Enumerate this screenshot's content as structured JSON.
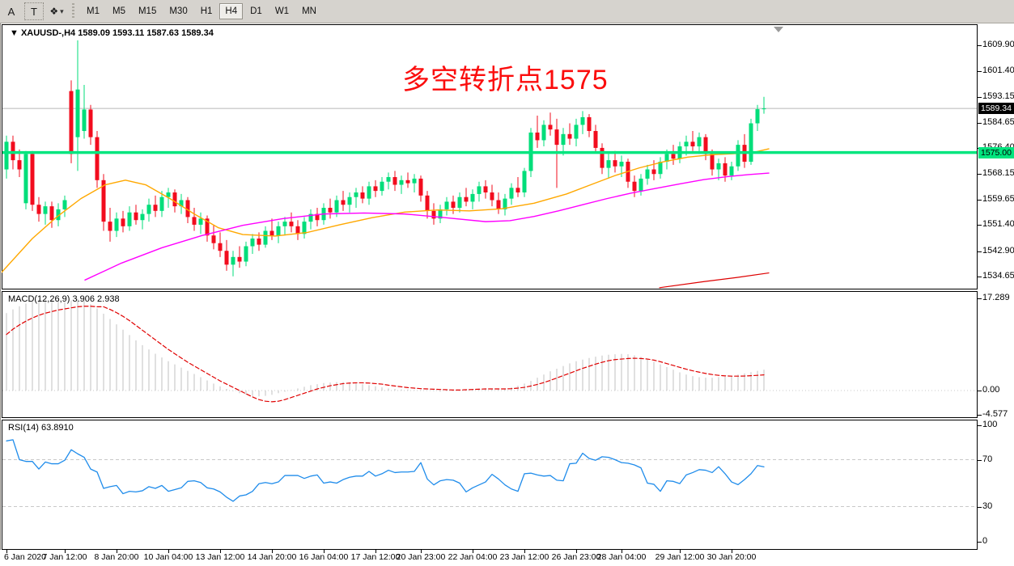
{
  "toolbar": {
    "button_a": "A",
    "button_t": "T",
    "cursor_tool_glyph": "❖",
    "dropdown_arrow": "▾",
    "timeframes": [
      "M1",
      "M5",
      "M15",
      "M30",
      "H1",
      "H4",
      "D1",
      "W1",
      "MN"
    ],
    "active_timeframe": "H4"
  },
  "chart_header": {
    "symbol": "XAUUSD-",
    "timeframe": "H4",
    "open": "1589.09",
    "high": "1593.11",
    "low": "1587.63",
    "close": "1589.34",
    "text": "▼ XAUUSD-,H4  1589.09 1593.11 1587.63 1589.34"
  },
  "annotation": {
    "text": "多空转折点1575",
    "color": "#fb0d0d"
  },
  "price_axis": {
    "values": [
      1609.9,
      1601.4,
      1593.15,
      1584.65,
      1576.4,
      1568.15,
      1559.65,
      1551.4,
      1542.9,
      1534.65
    ],
    "current_price": "1589.34",
    "hline_price": "1575.00"
  },
  "macd_panel": {
    "label": "MACD(12,26,9) 3.906 2.938",
    "axis": [
      {
        "v": 17.289,
        "label": "17.289"
      },
      {
        "v": 0,
        "label": "0.00"
      },
      {
        "v": -4.577,
        "label": "-4.577"
      }
    ]
  },
  "rsi_panel": {
    "label": "RSI(14) 63.8910",
    "axis": [
      {
        "v": 100,
        "label": "100"
      },
      {
        "v": 70,
        "label": "70"
      },
      {
        "v": 30,
        "label": "30"
      },
      {
        "v": 0,
        "label": "0"
      }
    ]
  },
  "time_axis": {
    "labels": [
      {
        "text": "6 Jan 2020",
        "i": 0
      },
      {
        "text": "7 Jan 12:00",
        "i": 9
      },
      {
        "text": "8 Jan 20:00",
        "i": 17
      },
      {
        "text": "10 Jan 04:00",
        "i": 25
      },
      {
        "text": "13 Jan 12:00",
        "i": 33
      },
      {
        "text": "14 Jan 20:00",
        "i": 41
      },
      {
        "text": "16 Jan 04:00",
        "i": 49
      },
      {
        "text": "17 Jan 12:00",
        "i": 57
      },
      {
        "text": "20 Jan 23:00",
        "i": 64
      },
      {
        "text": "22 Jan 04:00",
        "i": 72
      },
      {
        "text": "23 Jan 12:00",
        "i": 80
      },
      {
        "text": "26 Jan 23:00",
        "i": 88
      },
      {
        "text": "28 Jan 04:00",
        "i": 95
      },
      {
        "text": "29 Jan 12:00",
        "i": 104
      },
      {
        "text": "30 Jan 20:00",
        "i": 112
      }
    ]
  },
  "colors": {
    "bull": "#00de7a",
    "bear": "#f20c1e",
    "ma_orange": "#ffa800",
    "ma_magenta": "#ff00ff",
    "ma_red": "#dd0000",
    "macd_bar": "#c2c2c2",
    "macd_signal": "#e00000",
    "rsi_line": "#1f8ceb",
    "grid": "#c8c8c8",
    "hline": "#00e57e",
    "price_line": "#b8b8b8",
    "flag_bg": "#000000",
    "flag_text": "#ffffff",
    "toolbar_bg": "#d6d3ce",
    "chart_bg": "#ffffff",
    "marker_gray": "#9a9a9a"
  },
  "chart_data": {
    "type": "candlestick",
    "symbol": "XAUUSD",
    "timeframe": "H4",
    "title": "XAUUSD- H4 with MA / MACD(12,26,9) / RSI(14)",
    "hline": 1575.0,
    "last_price": 1589.34,
    "price_axis_range": [
      1534.65,
      1609.9
    ],
    "ohlc": [
      [
        1569.5,
        1580.5,
        1566.5,
        1578.5
      ],
      [
        1578.5,
        1580.5,
        1569.5,
        1572.5
      ],
      [
        1572.5,
        1576,
        1567,
        1569.5
      ],
      [
        1558.5,
        1575.5,
        1556.5,
        1574.5
      ],
      [
        1574.5,
        1575.5,
        1556,
        1558
      ],
      [
        1558,
        1560.5,
        1552.5,
        1555
      ],
      [
        1555,
        1559,
        1551.5,
        1557.5
      ],
      [
        1557.5,
        1559,
        1550.5,
        1553
      ],
      [
        1553,
        1558.5,
        1551,
        1556.5
      ],
      [
        1556.5,
        1561,
        1554,
        1559.5
      ],
      [
        1595,
        1598.5,
        1571.5,
        1574.5
      ],
      [
        1580,
        1611.5,
        1569,
        1595.5
      ],
      [
        1582,
        1597,
        1579.5,
        1589
      ],
      [
        1589,
        1590.5,
        1577.5,
        1580
      ],
      [
        1580,
        1582,
        1563.5,
        1566
      ],
      [
        1566,
        1568,
        1549.5,
        1552.5
      ],
      [
        1552.5,
        1557,
        1546,
        1549.5
      ],
      [
        1549.5,
        1555.5,
        1547.5,
        1553.5
      ],
      [
        1553.5,
        1556,
        1549,
        1551
      ],
      [
        1551,
        1557.5,
        1549.5,
        1555.5
      ],
      [
        1555.5,
        1558,
        1551.5,
        1553
      ],
      [
        1553,
        1556.5,
        1550,
        1555
      ],
      [
        1555,
        1560,
        1552.5,
        1558
      ],
      [
        1558,
        1561,
        1554,
        1556
      ],
      [
        1556,
        1562.5,
        1554,
        1560.5
      ],
      [
        1560.5,
        1563.5,
        1557,
        1562
      ],
      [
        1562,
        1563,
        1555.5,
        1557.5
      ],
      [
        1557.5,
        1561.5,
        1555,
        1559.5
      ],
      [
        1559.5,
        1560.5,
        1552,
        1554
      ],
      [
        1554,
        1557,
        1549.5,
        1551.5
      ],
      [
        1551.5,
        1555.5,
        1548.5,
        1553.5
      ],
      [
        1553.5,
        1554.5,
        1546,
        1548
      ],
      [
        1548,
        1551.5,
        1543.5,
        1545.5
      ],
      [
        1545.5,
        1549,
        1541,
        1543
      ],
      [
        1543,
        1546.5,
        1536.5,
        1538.5
      ],
      [
        1538.5,
        1543,
        1534.7,
        1541
      ],
      [
        1541,
        1544.5,
        1537.5,
        1539.5
      ],
      [
        1539.5,
        1546,
        1538,
        1544.5
      ],
      [
        1544.5,
        1548.5,
        1542,
        1547
      ],
      [
        1547,
        1549,
        1543,
        1545
      ],
      [
        1545,
        1551,
        1544,
        1549.5
      ],
      [
        1549.5,
        1553.5,
        1546.5,
        1548
      ],
      [
        1548,
        1552.5,
        1545.5,
        1551
      ],
      [
        1551,
        1554,
        1548,
        1552.5
      ],
      [
        1552.5,
        1555.5,
        1549,
        1551
      ],
      [
        1551,
        1553,
        1546.5,
        1548.5
      ],
      [
        1548.5,
        1554,
        1547,
        1552.5
      ],
      [
        1552.5,
        1556.5,
        1550,
        1555
      ],
      [
        1555,
        1557,
        1551,
        1553
      ],
      [
        1553,
        1558.5,
        1551.5,
        1557
      ],
      [
        1557,
        1560,
        1553.5,
        1555.5
      ],
      [
        1555.5,
        1561,
        1554,
        1559.5
      ],
      [
        1559.5,
        1562.5,
        1556,
        1558
      ],
      [
        1558,
        1562,
        1555.5,
        1560.5
      ],
      [
        1560.5,
        1563.5,
        1557,
        1562
      ],
      [
        1562,
        1564,
        1558.5,
        1560
      ],
      [
        1560,
        1565.5,
        1558,
        1564
      ],
      [
        1564,
        1566,
        1560.5,
        1562.5
      ],
      [
        1562.5,
        1567,
        1561,
        1565.5
      ],
      [
        1565.5,
        1568.5,
        1563,
        1567
      ],
      [
        1567,
        1569,
        1562.5,
        1564.5
      ],
      [
        1564.5,
        1567.5,
        1561.5,
        1566
      ],
      [
        1566,
        1568.5,
        1563.5,
        1565
      ],
      [
        1565,
        1568,
        1562,
        1566.5
      ],
      [
        1566.5,
        1567.5,
        1559,
        1561
      ],
      [
        1561,
        1562.5,
        1553.5,
        1556
      ],
      [
        1556,
        1558.5,
        1551.5,
        1553.5
      ],
      [
        1553.5,
        1558,
        1552,
        1556.5
      ],
      [
        1556.5,
        1560.5,
        1554.5,
        1559
      ],
      [
        1559,
        1561,
        1555,
        1557
      ],
      [
        1557,
        1562,
        1555.5,
        1560.5
      ],
      [
        1560.5,
        1563.5,
        1557.5,
        1559
      ],
      [
        1559,
        1563,
        1556.5,
        1561.5
      ],
      [
        1561.5,
        1565.5,
        1559,
        1564
      ],
      [
        1564,
        1566,
        1560,
        1562
      ],
      [
        1562,
        1564.5,
        1557.5,
        1559.5
      ],
      [
        1559.5,
        1562,
        1555,
        1556.5
      ],
      [
        1556.5,
        1561.5,
        1554.5,
        1560
      ],
      [
        1560,
        1565,
        1558,
        1563.5
      ],
      [
        1563.5,
        1567,
        1560.5,
        1562
      ],
      [
        1562,
        1570,
        1560.5,
        1569
      ],
      [
        1569,
        1583,
        1567,
        1581.5
      ],
      [
        1581.5,
        1587,
        1576.5,
        1579
      ],
      [
        1579,
        1585.5,
        1577,
        1584
      ],
      [
        1584,
        1588,
        1580.5,
        1582.5
      ],
      [
        1582.5,
        1586,
        1563.5,
        1577.5
      ],
      [
        1577.5,
        1583,
        1574,
        1581
      ],
      [
        1581,
        1584.5,
        1577.5,
        1579.5
      ],
      [
        1579.5,
        1586,
        1577,
        1584
      ],
      [
        1584,
        1588.5,
        1581,
        1586.5
      ],
      [
        1586.5,
        1587.5,
        1580,
        1582
      ],
      [
        1582,
        1584,
        1575,
        1576.5
      ],
      [
        1576.5,
        1578,
        1568,
        1570
      ],
      [
        1570,
        1574.5,
        1566.5,
        1572.5
      ],
      [
        1572.5,
        1575.5,
        1568.5,
        1570.5
      ],
      [
        1570.5,
        1574,
        1567,
        1572
      ],
      [
        1572,
        1573,
        1563.5,
        1565.5
      ],
      [
        1565.5,
        1567.5,
        1560.5,
        1562.5
      ],
      [
        1562.5,
        1568,
        1561,
        1566.5
      ],
      [
        1566.5,
        1571,
        1564.5,
        1569.5
      ],
      [
        1569.5,
        1572.5,
        1566,
        1568
      ],
      [
        1568,
        1573.5,
        1566.5,
        1572
      ],
      [
        1572,
        1576,
        1569.5,
        1574.5
      ],
      [
        1574.5,
        1577.5,
        1571,
        1573
      ],
      [
        1573,
        1578.5,
        1571.5,
        1577
      ],
      [
        1577,
        1580.5,
        1574,
        1578.5
      ],
      [
        1578.5,
        1582,
        1575.5,
        1577
      ],
      [
        1577,
        1581.5,
        1574.5,
        1580
      ],
      [
        1580,
        1581,
        1572.5,
        1574.5
      ],
      [
        1574.5,
        1576,
        1567.5,
        1569.5
      ],
      [
        1569.5,
        1573,
        1566,
        1571.5
      ],
      [
        1571.5,
        1573.5,
        1565.5,
        1567.5
      ],
      [
        1567.5,
        1572,
        1566,
        1570.5
      ],
      [
        1570.5,
        1579,
        1569,
        1577.5
      ],
      [
        1577.5,
        1581,
        1570,
        1572
      ],
      [
        1572,
        1586,
        1571,
        1584.5
      ],
      [
        1584.5,
        1590.5,
        1582,
        1589.1
      ],
      [
        1589.09,
        1593.11,
        1587.63,
        1589.34
      ]
    ],
    "ma_orange": [
      [
        2,
        1536
      ],
      [
        40,
        1547
      ],
      [
        70,
        1554
      ],
      [
        100,
        1560
      ],
      [
        130,
        1564.5
      ],
      [
        155,
        1566
      ],
      [
        180,
        1564.5
      ],
      [
        210,
        1560
      ],
      [
        240,
        1555
      ],
      [
        270,
        1550.5
      ],
      [
        300,
        1548.3
      ],
      [
        340,
        1547.8
      ],
      [
        380,
        1549
      ],
      [
        420,
        1551.5
      ],
      [
        460,
        1553.8
      ],
      [
        500,
        1555.6
      ],
      [
        540,
        1556.3
      ],
      [
        580,
        1556
      ],
      [
        620,
        1556.7
      ],
      [
        660,
        1558.5
      ],
      [
        700,
        1561.5
      ],
      [
        730,
        1564.5
      ],
      [
        760,
        1567.5
      ],
      [
        790,
        1570
      ],
      [
        820,
        1572
      ],
      [
        850,
        1573.5
      ],
      [
        880,
        1574.3
      ],
      [
        905,
        1574.6
      ],
      [
        930,
        1575
      ],
      [
        950,
        1576.2
      ]
    ],
    "ma_magenta": [
      [
        105,
        1533.5
      ],
      [
        150,
        1539
      ],
      [
        200,
        1544
      ],
      [
        250,
        1548
      ],
      [
        300,
        1551.3
      ],
      [
        350,
        1553.5
      ],
      [
        400,
        1555
      ],
      [
        450,
        1555.3
      ],
      [
        500,
        1555
      ],
      [
        550,
        1553.8
      ],
      [
        600,
        1552.5
      ],
      [
        630,
        1552.8
      ],
      [
        660,
        1554.2
      ],
      [
        690,
        1556
      ],
      [
        720,
        1558
      ],
      [
        750,
        1560
      ],
      [
        780,
        1561.8
      ],
      [
        810,
        1563.3
      ],
      [
        840,
        1564.8
      ],
      [
        870,
        1566.2
      ],
      [
        900,
        1567.2
      ],
      [
        925,
        1567.8
      ],
      [
        950,
        1568.3
      ]
    ],
    "ma_red": [
      [
        815,
        1531
      ],
      [
        870,
        1533
      ],
      [
        910,
        1534.3
      ],
      [
        950,
        1535.8
      ]
    ],
    "macd": {
      "params": "12,26,9",
      "last_main": 3.906,
      "last_signal": 2.938,
      "axis_max": 17.289,
      "axis_min": -4.577,
      "main": [
        14.5,
        15.2,
        15.8,
        16.3,
        16.7,
        17.0,
        17.3,
        17.2,
        17.0,
        16.6,
        16.9,
        17.2,
        16.8,
        16.2,
        15.4,
        14.4,
        13.4,
        12.4,
        11.4,
        10.4,
        9.4,
        8.5,
        7.7,
        6.9,
        6.2,
        5.5,
        4.9,
        4.3,
        3.7,
        3.1,
        2.5,
        1.9,
        1.3,
        0.8,
        0.3,
        -0.1,
        -0.5,
        -0.8,
        -1.0,
        -1.1,
        -1.0,
        -0.8,
        -0.5,
        -0.2,
        0.1,
        0.4,
        0.7,
        1.0,
        1.2,
        1.4,
        1.5,
        1.6,
        1.6,
        1.5,
        1.4,
        1.2,
        1.0,
        0.8,
        0.6,
        0.4,
        0.3,
        0.2,
        0.2,
        0.1,
        0.1,
        0.0,
        -0.1,
        -0.2,
        -0.1,
        0.0,
        0.1,
        0.2,
        0.3,
        0.4,
        0.4,
        0.3,
        0.3,
        0.4,
        0.6,
        0.9,
        1.3,
        1.8,
        2.4,
        3.0,
        3.6,
        4.1,
        4.6,
        5.1,
        5.5,
        5.8,
        6.1,
        6.35,
        6.55,
        6.7,
        6.8,
        6.85,
        6.8,
        6.6,
        6.3,
        5.9,
        5.4,
        4.9,
        4.4,
        3.9,
        3.4,
        3.0,
        2.7,
        2.5,
        2.4,
        2.4,
        2.5,
        2.6,
        2.8,
        3.0,
        3.2,
        3.45,
        3.7,
        3.906
      ],
      "signal": [
        10.5,
        11.5,
        12.3,
        13,
        13.6,
        14.1,
        14.5,
        14.8,
        15.1,
        15.3,
        15.5,
        15.7,
        15.8,
        15.8,
        15.7,
        15.7,
        15.2,
        14.6,
        13.9,
        13.1,
        12.2,
        11.3,
        10.4,
        9.5,
        8.6,
        7.7,
        6.9,
        6.1,
        5.3,
        4.6,
        3.9,
        3.2,
        2.5,
        1.8,
        1.2,
        0.6,
        0,
        -0.6,
        -1.2,
        -1.7,
        -2,
        -2.1,
        -2,
        -1.7,
        -1.3,
        -0.9,
        -0.5,
        -0.1,
        0.3,
        0.6,
        0.9,
        1.1,
        1.3,
        1.4,
        1.45,
        1.45,
        1.4,
        1.3,
        1.2,
        1,
        0.85,
        0.7,
        0.55,
        0.45,
        0.35,
        0.3,
        0.25,
        0.2,
        0.15,
        0.1,
        0.1,
        0.15,
        0.2,
        0.25,
        0.3,
        0.3,
        0.3,
        0.3,
        0.35,
        0.45,
        0.6,
        0.85,
        1.15,
        1.5,
        1.9,
        2.35,
        2.8,
        3.25,
        3.7,
        4.15,
        4.55,
        4.95,
        5.3,
        5.6,
        5.8,
        5.9,
        6,
        6.05,
        6,
        5.9,
        5.7,
        5.4,
        5.05,
        4.7,
        4.35,
        4,
        3.7,
        3.45,
        3.2,
        3,
        2.85,
        2.75,
        2.7,
        2.7,
        2.72,
        2.78,
        2.85,
        2.938
      ]
    },
    "rsi": {
      "period": 14,
      "last": 63.891,
      "levels": [
        70,
        30
      ],
      "range": [
        0,
        100
      ],
      "values": [
        86,
        87,
        70,
        68.5,
        68.5,
        62,
        68,
        66.5,
        66.5,
        69.5,
        78.5,
        75,
        72,
        62,
        59.5,
        45.5,
        47,
        48,
        41,
        43,
        42.5,
        43.5,
        47,
        45.5,
        48,
        43,
        44.5,
        46,
        51.5,
        52,
        50.5,
        46,
        45,
        42.5,
        38,
        34.5,
        39,
        40,
        43,
        49.5,
        50.5,
        49.5,
        51,
        56.5,
        56.5,
        56.5,
        54,
        56,
        57,
        50,
        51,
        50,
        53,
        55,
        56,
        56,
        60,
        56,
        58,
        61,
        59,
        59.5,
        59.5,
        60,
        67.5,
        53.5,
        48.5,
        52,
        53,
        52.5,
        50,
        42.5,
        46,
        48.5,
        51,
        57.5,
        53.5,
        48.5,
        45,
        43,
        58,
        58.5,
        57,
        56,
        56.5,
        52.5,
        52,
        66.5,
        67,
        75.5,
        71,
        69.5,
        72.5,
        72,
        70,
        67.5,
        67,
        65.5,
        63,
        50,
        49,
        43,
        52,
        51.5,
        49.6,
        57,
        59,
        61.5,
        61,
        59,
        64,
        58,
        51,
        48.7,
        53,
        58,
        65,
        63.89
      ]
    }
  }
}
